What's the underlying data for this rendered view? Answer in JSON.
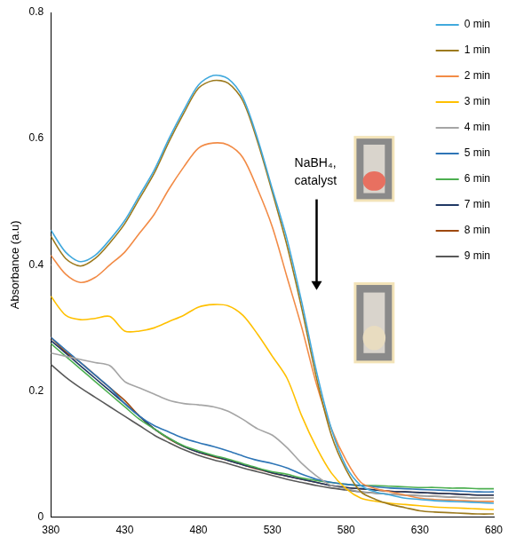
{
  "chart_data": {
    "type": "line",
    "y_label": "Absorbance (a.u)",
    "annotation": "NaBH₄, catalyst",
    "x": [
      380,
      390,
      400,
      410,
      420,
      430,
      440,
      450,
      460,
      470,
      480,
      490,
      500,
      510,
      520,
      530,
      540,
      550,
      560,
      570,
      580,
      590,
      600,
      610,
      620,
      630,
      640,
      650,
      660,
      670,
      680
    ],
    "xlim": [
      380,
      680
    ],
    "xticks": [
      380,
      430,
      480,
      530,
      580,
      630,
      680
    ],
    "ylim": [
      0,
      0.8
    ],
    "yticks": [
      0,
      0.2,
      0.4,
      0.6,
      0.8
    ],
    "grid": false,
    "legend": "upper right",
    "series": [
      {
        "name": "0 min",
        "color": "#41a9dd",
        "values": [
          0.455,
          0.42,
          0.405,
          0.415,
          0.44,
          0.47,
          0.51,
          0.55,
          0.6,
          0.645,
          0.685,
          0.7,
          0.695,
          0.665,
          0.6,
          0.52,
          0.44,
          0.34,
          0.23,
          0.14,
          0.08,
          0.05,
          0.04,
          0.035,
          0.03,
          0.028,
          0.026,
          0.025,
          0.024,
          0.023,
          0.022
        ]
      },
      {
        "name": "1 min",
        "color": "#9c7a1e",
        "values": [
          0.445,
          0.41,
          0.398,
          0.41,
          0.435,
          0.465,
          0.505,
          0.545,
          0.595,
          0.64,
          0.68,
          0.692,
          0.688,
          0.66,
          0.595,
          0.515,
          0.43,
          0.33,
          0.22,
          0.13,
          0.075,
          0.04,
          0.028,
          0.02,
          0.015,
          0.01,
          0.008,
          0.007,
          0.006,
          0.005,
          0.005
        ]
      },
      {
        "name": "2 min",
        "color": "#f28b46",
        "values": [
          0.415,
          0.385,
          0.372,
          0.38,
          0.4,
          0.42,
          0.45,
          0.48,
          0.52,
          0.555,
          0.585,
          0.593,
          0.59,
          0.57,
          0.52,
          0.46,
          0.38,
          0.3,
          0.21,
          0.14,
          0.09,
          0.055,
          0.045,
          0.04,
          0.035,
          0.03,
          0.028,
          0.027,
          0.026,
          0.025,
          0.025
        ]
      },
      {
        "name": "3 min",
        "color": "#ffc000",
        "values": [
          0.35,
          0.32,
          0.313,
          0.315,
          0.318,
          0.295,
          0.295,
          0.3,
          0.31,
          0.32,
          0.333,
          0.337,
          0.335,
          0.32,
          0.29,
          0.255,
          0.22,
          0.16,
          0.11,
          0.07,
          0.045,
          0.03,
          0.025,
          0.022,
          0.02,
          0.018,
          0.016,
          0.015,
          0.014,
          0.013,
          0.012
        ]
      },
      {
        "name": "4 min",
        "color": "#a5a5a5",
        "values": [
          0.26,
          0.255,
          0.25,
          0.245,
          0.24,
          0.215,
          0.205,
          0.195,
          0.185,
          0.18,
          0.178,
          0.175,
          0.168,
          0.155,
          0.14,
          0.13,
          0.11,
          0.085,
          0.065,
          0.05,
          0.045,
          0.04,
          0.038,
          0.036,
          0.035,
          0.034,
          0.033,
          0.032,
          0.031,
          0.03,
          0.03
        ]
      },
      {
        "name": "5 min",
        "color": "#2e75b6",
        "values": [
          0.285,
          0.265,
          0.245,
          0.225,
          0.205,
          0.18,
          0.16,
          0.145,
          0.135,
          0.125,
          0.118,
          0.112,
          0.105,
          0.097,
          0.09,
          0.085,
          0.078,
          0.068,
          0.06,
          0.055,
          0.052,
          0.05,
          0.048,
          0.046,
          0.045,
          0.044,
          0.043,
          0.042,
          0.041,
          0.04,
          0.04
        ]
      },
      {
        "name": "6 min",
        "color": "#4caf50",
        "values": [
          0.275,
          0.255,
          0.235,
          0.215,
          0.195,
          0.175,
          0.155,
          0.14,
          0.125,
          0.113,
          0.105,
          0.098,
          0.092,
          0.085,
          0.078,
          0.072,
          0.068,
          0.062,
          0.058,
          0.055,
          0.052,
          0.05,
          0.05,
          0.049,
          0.048,
          0.047,
          0.047,
          0.046,
          0.046,
          0.045,
          0.045
        ]
      },
      {
        "name": "7 min",
        "color": "#1f3864",
        "values": [
          0.28,
          0.26,
          0.24,
          0.22,
          0.2,
          0.18,
          0.16,
          0.14,
          0.125,
          0.112,
          0.103,
          0.097,
          0.09,
          0.083,
          0.077,
          0.07,
          0.065,
          0.06,
          0.055,
          0.05,
          0.047,
          0.045,
          0.043,
          0.041,
          0.04,
          0.039,
          0.038,
          0.037,
          0.036,
          0.035,
          0.035
        ]
      },
      {
        "name": "8 min",
        "color": "#9e480e",
        "values": [
          0.285,
          0.262,
          0.245,
          0.225,
          0.205,
          0.185,
          0.16,
          0.14,
          0.124,
          0.112,
          0.103,
          0.096,
          0.09,
          0.083,
          0.076,
          0.07,
          0.065,
          0.06,
          0.055,
          0.05,
          0.047,
          0.045,
          0.043,
          0.041,
          0.04,
          0.039,
          0.038,
          0.037,
          0.036,
          0.035,
          0.035
        ]
      },
      {
        "name": "9 min",
        "color": "#595959",
        "values": [
          0.242,
          0.222,
          0.205,
          0.19,
          0.175,
          0.16,
          0.145,
          0.13,
          0.118,
          0.107,
          0.098,
          0.091,
          0.085,
          0.078,
          0.072,
          0.066,
          0.06,
          0.055,
          0.05,
          0.046,
          0.043,
          0.04,
          0.038,
          0.036,
          0.035,
          0.034,
          0.033,
          0.032,
          0.031,
          0.03,
          0.03
        ]
      }
    ]
  }
}
